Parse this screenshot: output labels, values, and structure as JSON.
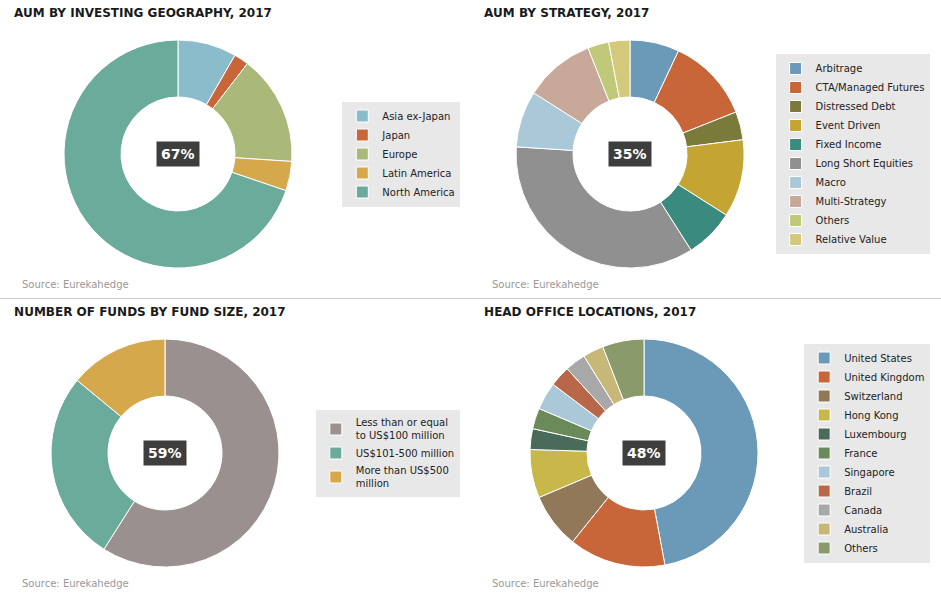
{
  "chart_data": [
    {
      "type": "pie",
      "title": "AUM BY INVESTING GEOGRAPHY, 2017",
      "categories": [
        "Asia ex-Japan",
        "Japan",
        "Europe",
        "Latin America",
        "North America"
      ],
      "values": [
        8,
        2,
        15,
        4,
        67
      ],
      "colors": [
        "#8bbccc",
        "#c8663a",
        "#aab87a",
        "#d4a84b",
        "#6aab9c"
      ],
      "annotations": [
        "67%",
        "Source: Eurekahedge"
      ],
      "legend": "right"
    },
    {
      "type": "pie",
      "title": "AUM BY STRATEGY, 2017",
      "categories": [
        "Arbitrage",
        "CTA/Managed Futures",
        "Distressed Debt",
        "Event Driven",
        "Fixed Income",
        "Long Short Equities",
        "Macro",
        "Multi-Strategy",
        "Others",
        "Relative Value"
      ],
      "values": [
        7,
        12,
        4,
        11,
        7,
        35,
        8,
        10,
        3,
        3
      ],
      "colors": [
        "#6b9ab8",
        "#c8663a",
        "#7a7a3a",
        "#c4a533",
        "#3a8a7e",
        "#909090",
        "#aac8d8",
        "#c8a898",
        "#c0c87a",
        "#d4c87a"
      ],
      "annotations": [
        "35%",
        "Source: Eurekahedge"
      ],
      "legend": "right"
    },
    {
      "type": "pie",
      "title": "NUMBER OF FUNDS BY FUND SIZE, 2017",
      "categories": [
        "Less than or equal\nto US$100 million",
        "US$101-500 million",
        "More than US$500\nmillion"
      ],
      "values": [
        59,
        27,
        14
      ],
      "colors": [
        "#9a9090",
        "#6aab9c",
        "#d4a84b"
      ],
      "annotations": [
        "59%",
        "Source: Eurekahedge"
      ],
      "legend": "right"
    },
    {
      "type": "pie",
      "title": "HEAD OFFICE LOCATIONS, 2017",
      "categories": [
        "United States",
        "United Kingdom",
        "Switzerland",
        "Hong Kong",
        "Luxembourg",
        "France",
        "Singapore",
        "Brazil",
        "Canada",
        "Australia",
        "Others"
      ],
      "values": [
        48,
        14,
        8,
        7,
        3,
        3,
        4,
        3,
        3,
        3,
        6
      ],
      "colors": [
        "#6b9ab8",
        "#c8663a",
        "#907858",
        "#c8b84a",
        "#4a6a5a",
        "#6a8a5a",
        "#aac8d8",
        "#b86848",
        "#a8a8a8",
        "#c8b878",
        "#8a9a6a"
      ],
      "annotations": [
        "48%",
        "Source: Eurekahedge"
      ],
      "legend": "right"
    }
  ]
}
